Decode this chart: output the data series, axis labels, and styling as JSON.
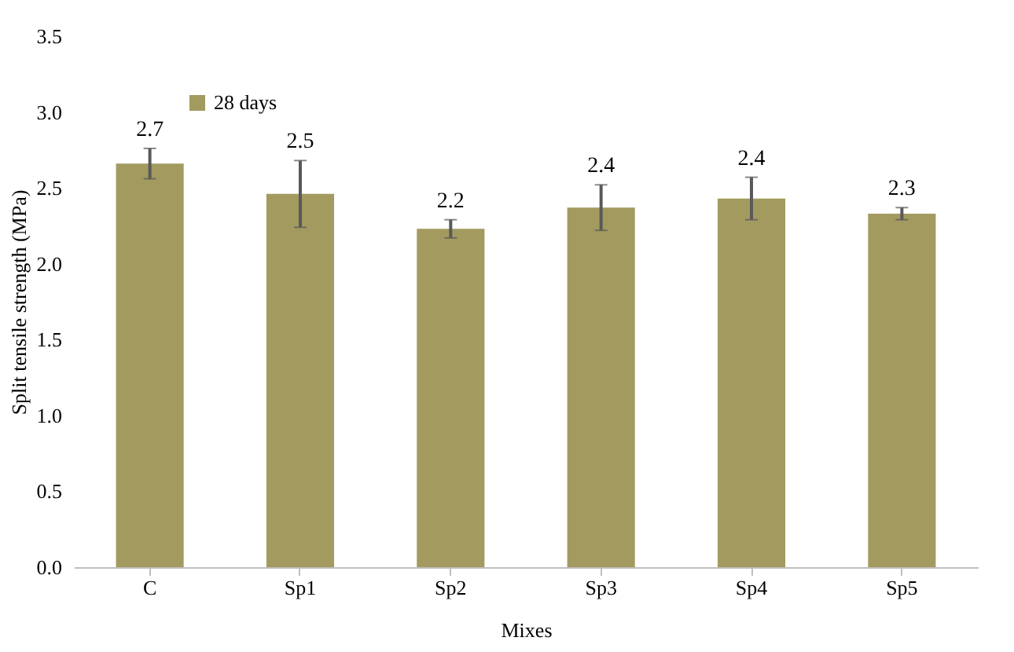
{
  "chart_data": {
    "type": "bar",
    "xlabel": "Mixes",
    "ylabel": "Split tensile strength (MPa)",
    "categories": [
      "C",
      "Sp1",
      "Sp2",
      "Sp3",
      "Sp4",
      "Sp5"
    ],
    "series": [
      {
        "name": "28 days",
        "color": "#a39a5f",
        "values": [
          2.66,
          2.46,
          2.23,
          2.37,
          2.43,
          2.33
        ],
        "errors": [
          0.1,
          0.22,
          0.06,
          0.15,
          0.14,
          0.04
        ],
        "value_labels": [
          "2.7",
          "2.5",
          "2.2",
          "2.4",
          "2.4",
          "2.3"
        ]
      }
    ],
    "ylim": [
      0,
      3.5
    ],
    "yticks": [
      {
        "value": 0,
        "label": "0.0"
      },
      {
        "value": 0.5,
        "label": "0.5"
      },
      {
        "value": 1,
        "label": "1.0"
      },
      {
        "value": 1.5,
        "label": "1.5"
      },
      {
        "value": 2,
        "label": "2.0"
      },
      {
        "value": 2.5,
        "label": "2.5"
      },
      {
        "value": 3,
        "label": "3.0"
      },
      {
        "value": 3.5,
        "label": "3.5"
      }
    ],
    "grid": false,
    "legend": "top left"
  }
}
